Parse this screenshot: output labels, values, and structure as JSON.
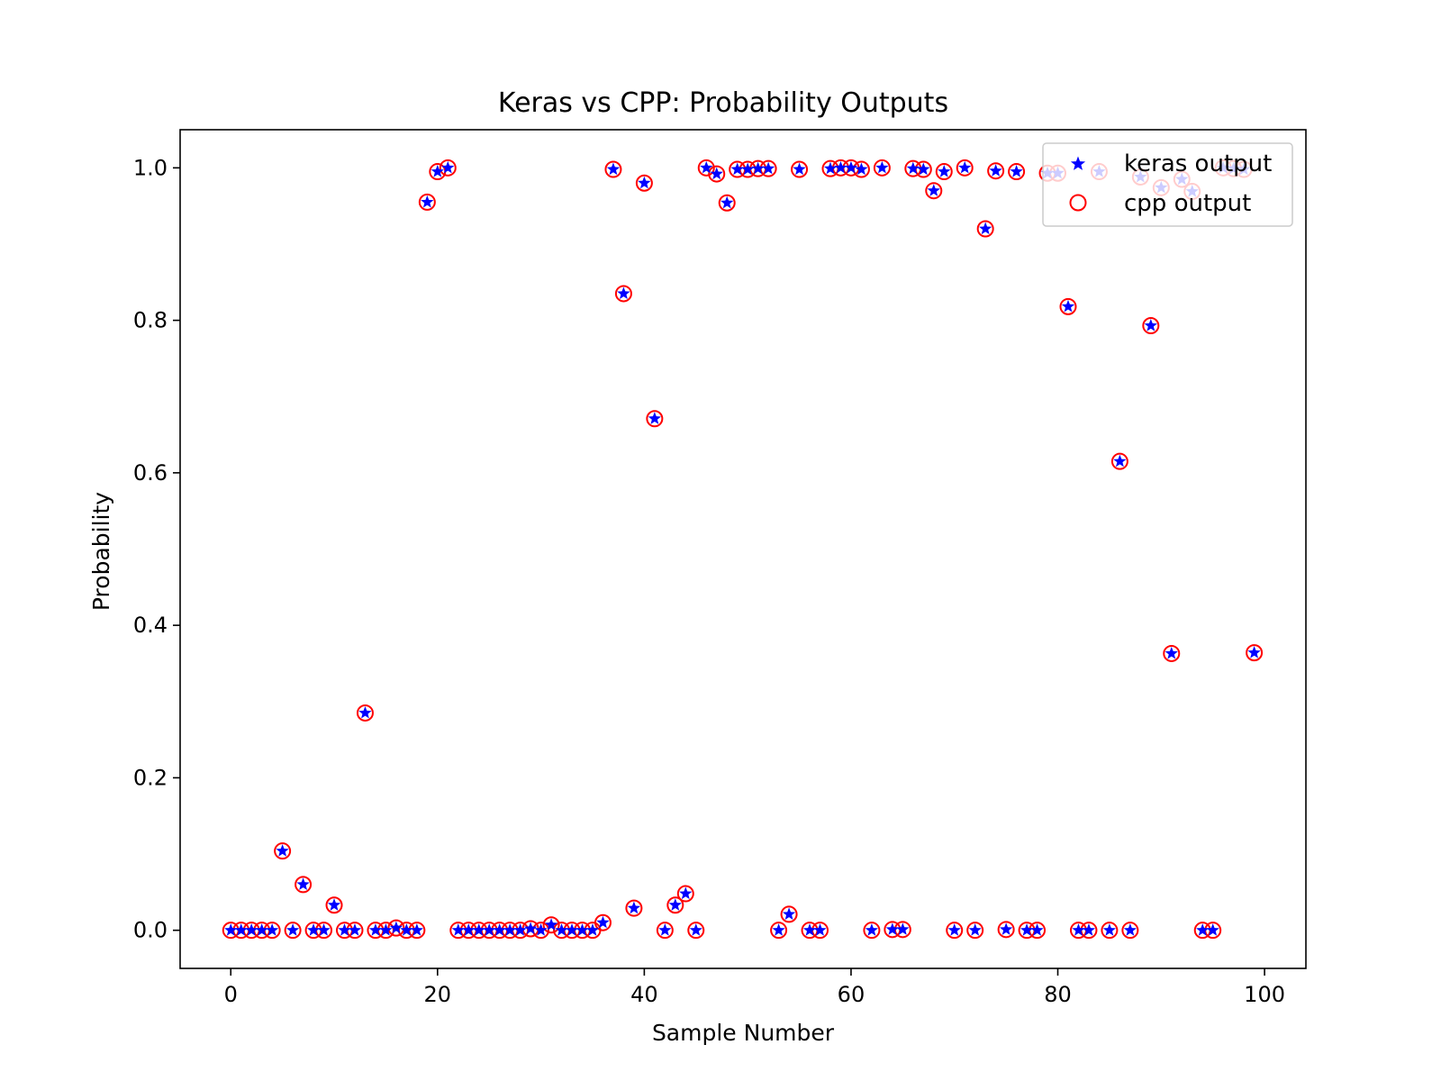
{
  "chart_data": {
    "type": "scatter",
    "title": "Keras vs CPP: Probability Outputs",
    "xlabel": "Sample Number",
    "ylabel": "Probability",
    "xlim": [
      -4.9,
      104
    ],
    "ylim": [
      -0.05,
      1.05
    ],
    "xticks": [
      0,
      20,
      40,
      60,
      80,
      100
    ],
    "yticks": [
      0.0,
      0.2,
      0.4,
      0.6,
      0.8,
      1.0
    ],
    "xtick_labels": [
      "0",
      "20",
      "40",
      "60",
      "80",
      "100"
    ],
    "ytick_labels": [
      "0.0",
      "0.2",
      "0.4",
      "0.6",
      "0.8",
      "1.0"
    ],
    "grid": false,
    "legend": "top-right",
    "colors": {
      "keras": "#0000ff",
      "cpp": "#ff0000"
    },
    "x": [
      0,
      1,
      2,
      3,
      4,
      5,
      6,
      7,
      8,
      9,
      10,
      11,
      12,
      13,
      14,
      15,
      16,
      17,
      18,
      19,
      20,
      21,
      22,
      23,
      24,
      25,
      26,
      27,
      28,
      29,
      30,
      31,
      32,
      33,
      34,
      35,
      36,
      37,
      38,
      39,
      40,
      41,
      42,
      43,
      44,
      45,
      46,
      47,
      48,
      49,
      50,
      51,
      52,
      53,
      54,
      55,
      56,
      57,
      58,
      59,
      60,
      61,
      62,
      63,
      64,
      65,
      66,
      67,
      68,
      69,
      70,
      71,
      72,
      73,
      74,
      75,
      76,
      77,
      78,
      79,
      80,
      81,
      82,
      83,
      84,
      85,
      86,
      87,
      88,
      89,
      90,
      91,
      92,
      93,
      94,
      95,
      96,
      97,
      98,
      99
    ],
    "series": [
      {
        "name": "keras output",
        "marker": "star",
        "values": [
          0.0,
          0.0,
          0.0,
          0.0,
          0.0,
          0.104,
          0.0,
          0.06,
          0.0,
          0.0,
          0.033,
          0.0,
          0.0,
          0.285,
          0.0,
          0.0,
          0.003,
          0.0,
          0.0,
          0.955,
          0.995,
          1.0,
          0.0,
          0.0,
          0.0,
          0.0,
          0.0,
          0.0,
          0.0,
          0.002,
          0.0,
          0.007,
          0.0,
          0.0,
          0.0,
          0.0,
          0.01,
          0.998,
          0.835,
          0.029,
          0.98,
          0.671,
          0.0,
          0.033,
          0.048,
          0.0,
          1.0,
          0.992,
          0.954,
          0.998,
          0.998,
          0.999,
          0.999,
          0.0,
          0.021,
          0.998,
          0.0,
          0.0,
          0.999,
          1.0,
          1.0,
          0.998,
          0.0,
          1.0,
          0.001,
          0.001,
          0.999,
          0.998,
          0.97,
          0.995,
          0.0,
          1.0,
          0.0,
          0.92,
          0.996,
          0.001,
          0.995,
          0.0,
          0.0,
          0.993,
          0.993,
          0.818,
          0.0,
          0.0,
          0.995,
          0.0,
          0.615,
          0.0,
          0.988,
          0.793,
          0.974,
          0.363,
          0.985,
          0.969,
          0.0,
          0.0,
          1.0,
          0.999,
          0.998,
          0.364
        ]
      },
      {
        "name": "cpp output",
        "marker": "circle",
        "values": [
          0.0,
          0.0,
          0.0,
          0.0,
          0.0,
          0.104,
          0.0,
          0.06,
          0.0,
          0.0,
          0.033,
          0.0,
          0.0,
          0.285,
          0.0,
          0.0,
          0.003,
          0.0,
          0.0,
          0.955,
          0.995,
          1.0,
          0.0,
          0.0,
          0.0,
          0.0,
          0.0,
          0.0,
          0.0,
          0.002,
          0.0,
          0.007,
          0.0,
          0.0,
          0.0,
          0.0,
          0.01,
          0.998,
          0.835,
          0.029,
          0.98,
          0.671,
          0.0,
          0.033,
          0.048,
          0.0,
          1.0,
          0.992,
          0.954,
          0.998,
          0.998,
          0.999,
          0.999,
          0.0,
          0.021,
          0.998,
          0.0,
          0.0,
          0.999,
          1.0,
          1.0,
          0.998,
          0.0,
          1.0,
          0.001,
          0.001,
          0.999,
          0.998,
          0.97,
          0.995,
          0.0,
          1.0,
          0.0,
          0.92,
          0.996,
          0.001,
          0.995,
          0.0,
          0.0,
          0.993,
          0.993,
          0.818,
          0.0,
          0.0,
          0.995,
          0.0,
          0.615,
          0.0,
          0.988,
          0.793,
          0.974,
          0.363,
          0.985,
          0.969,
          0.0,
          0.0,
          1.0,
          0.999,
          0.998,
          0.364
        ]
      }
    ]
  }
}
